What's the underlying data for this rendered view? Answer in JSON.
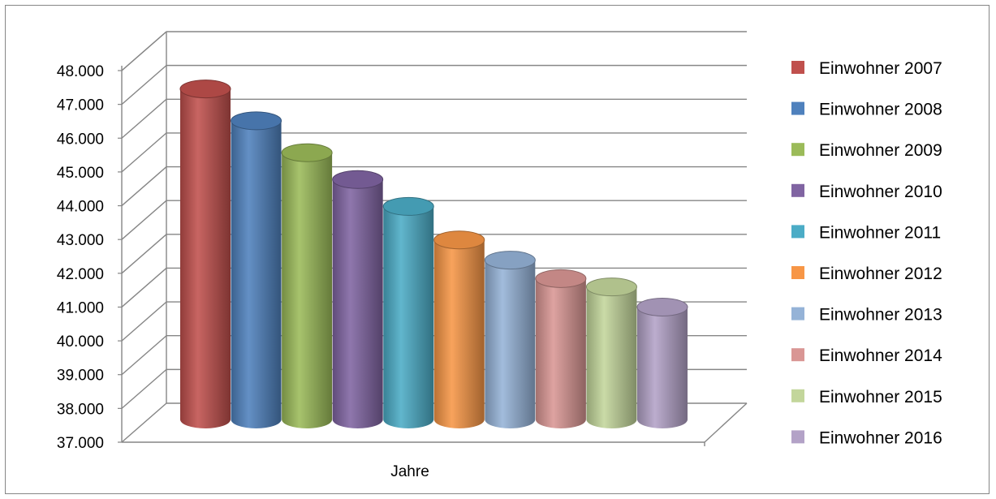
{
  "chart_data": {
    "type": "bar",
    "style": "3d-cylinder",
    "xlabel": "Jahre",
    "ylabel": "",
    "categories": [
      "Jahre"
    ],
    "ylim": [
      37000,
      48000
    ],
    "yticks": [
      "37.000",
      "38.000",
      "39.000",
      "40.000",
      "41.000",
      "42.000",
      "43.000",
      "44.000",
      "45.000",
      "46.000",
      "47.000",
      "48.000"
    ],
    "grid": true,
    "legend_position": "right",
    "series": [
      {
        "name": "Einwohner 2007",
        "value": 47550,
        "color": "#c0504d"
      },
      {
        "name": "Einwohner 2008",
        "value": 46600,
        "color": "#4f81bd"
      },
      {
        "name": "Einwohner 2009",
        "value": 45650,
        "color": "#9bbb59"
      },
      {
        "name": "Einwohner 2010",
        "value": 44850,
        "color": "#8064a2"
      },
      {
        "name": "Einwohner 2011",
        "value": 44050,
        "color": "#4bacc6"
      },
      {
        "name": "Einwohner 2012",
        "value": 43050,
        "color": "#f79646"
      },
      {
        "name": "Einwohner 2013",
        "value": 42450,
        "color": "#95b3d7"
      },
      {
        "name": "Einwohner 2014",
        "value": 41900,
        "color": "#d99694"
      },
      {
        "name": "Einwohner 2015",
        "value": 41650,
        "color": "#c3d69b"
      },
      {
        "name": "Einwohner 2016",
        "value": 41050,
        "color": "#b3a2c7"
      }
    ]
  }
}
